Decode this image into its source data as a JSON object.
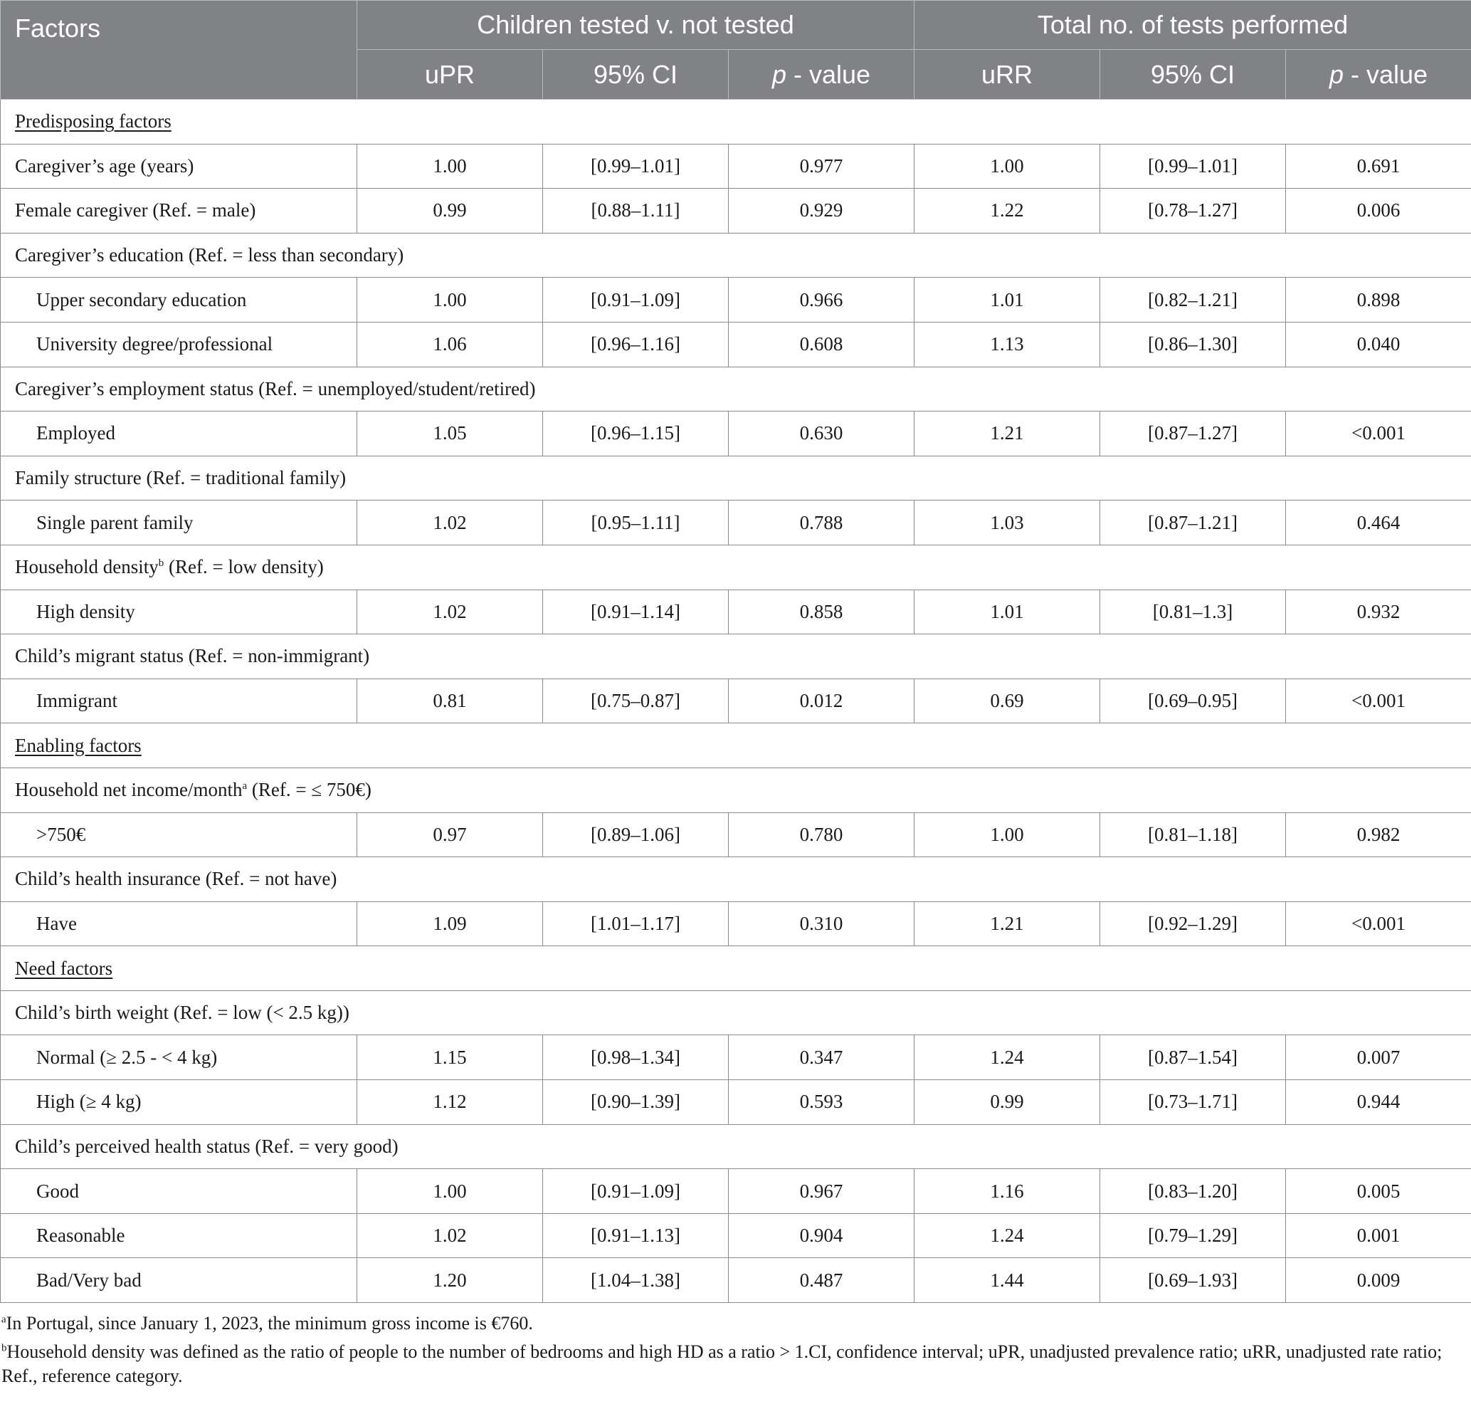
{
  "header": {
    "factors": "Factors",
    "group1": "Children tested v. not tested",
    "group2": "Total no. of tests performed",
    "upr": "uPR",
    "ci1": "95% CI",
    "pval1_p": "p",
    "pval1_rest": " - value",
    "urr": "uRR",
    "ci2": "95% CI",
    "pval2_p": "p",
    "pval2_rest": " - value"
  },
  "rows": [
    {
      "label": "Predisposing factors",
      "section": true
    },
    {
      "label": "Caregiver’s age (years)",
      "v": [
        "1.00",
        "[0.99–1.01]",
        "0.977",
        "1.00",
        "[0.99–1.01]",
        "0.691"
      ]
    },
    {
      "label": "Female caregiver (Ref. = male)",
      "v": [
        "0.99",
        "[0.88–1.11]",
        "0.929",
        "1.22",
        "[0.78–1.27]",
        "0.006"
      ]
    },
    {
      "label": "Caregiver’s education (Ref. = less than secondary)",
      "group": true
    },
    {
      "label": "Upper secondary education",
      "indent": true,
      "v": [
        "1.00",
        "[0.91–1.09]",
        "0.966",
        "1.01",
        "[0.82–1.21]",
        "0.898"
      ]
    },
    {
      "label": "University degree/professional",
      "indent": true,
      "v": [
        "1.06",
        "[0.96–1.16]",
        "0.608",
        "1.13",
        "[0.86–1.30]",
        "0.040"
      ]
    },
    {
      "label": "Caregiver’s employment status (Ref. = unemployed/student/retired)",
      "group": true
    },
    {
      "label": "Employed",
      "indent": true,
      "v": [
        "1.05",
        "[0.96–1.15]",
        "0.630",
        "1.21",
        "[0.87–1.27]",
        "<0.001"
      ]
    },
    {
      "label": "Family structure (Ref. = traditional family)",
      "group": true
    },
    {
      "label": "Single parent family",
      "indent": true,
      "v": [
        "1.02",
        "[0.95–1.11]",
        "0.788",
        "1.03",
        "[0.87–1.21]",
        "0.464"
      ]
    },
    {
      "label": "Household density",
      "sup": "b",
      "label_after": " (Ref. = low density)",
      "group": true
    },
    {
      "label": "High density",
      "indent": true,
      "v": [
        "1.02",
        "[0.91–1.14]",
        "0.858",
        "1.01",
        "[0.81–1.3]",
        "0.932"
      ]
    },
    {
      "label": "Child’s migrant status (Ref. = non-immigrant)",
      "group": true
    },
    {
      "label": "Immigrant",
      "indent": true,
      "v": [
        "0.81",
        "[0.75–0.87]",
        "0.012",
        "0.69",
        "[0.69–0.95]",
        "<0.001"
      ]
    },
    {
      "label": "Enabling factors",
      "section": true
    },
    {
      "label": "Household net income/month",
      "sup": "a",
      "label_after": " (Ref. = ≤ 750€)",
      "group": true
    },
    {
      "label": ">750€",
      "indent": true,
      "v": [
        "0.97",
        "[0.89–1.06]",
        "0.780",
        "1.00",
        "[0.81–1.18]",
        "0.982"
      ]
    },
    {
      "label": "Child’s health insurance (Ref. = not have)",
      "group": true
    },
    {
      "label": "Have",
      "indent": true,
      "v": [
        "1.09",
        "[1.01–1.17]",
        "0.310",
        "1.21",
        "[0.92–1.29]",
        "<0.001"
      ]
    },
    {
      "label": "Need factors",
      "section": true
    },
    {
      "label": "Child’s birth weight (Ref. = low (< 2.5 kg))",
      "group": true
    },
    {
      "label": "Normal (≥ 2.5 - < 4 kg)",
      "indent": true,
      "v": [
        "1.15",
        "[0.98–1.34]",
        "0.347",
        "1.24",
        "[0.87–1.54]",
        "0.007"
      ]
    },
    {
      "label": "High (≥ 4 kg)",
      "indent": true,
      "v": [
        "1.12",
        "[0.90–1.39]",
        "0.593",
        "0.99",
        "[0.73–1.71]",
        "0.944"
      ]
    },
    {
      "label": "Child’s perceived health status (Ref. = very good)",
      "group": true
    },
    {
      "label": "Good",
      "indent": true,
      "v": [
        "1.00",
        "[0.91–1.09]",
        "0.967",
        "1.16",
        "[0.83–1.20]",
        "0.005"
      ]
    },
    {
      "label": "Reasonable",
      "indent": true,
      "v": [
        "1.02",
        "[0.91–1.13]",
        "0.904",
        "1.24",
        "[0.79–1.29]",
        "0.001"
      ]
    },
    {
      "label": "Bad/Very bad",
      "indent": true,
      "v": [
        "1.20",
        "[1.04–1.38]",
        "0.487",
        "1.44",
        "[0.69–1.93]",
        "0.009"
      ]
    }
  ],
  "footnotes": [
    {
      "sup": "a",
      "text": "In Portugal, since January 1, 2023, the minimum gross income is €760."
    },
    {
      "sup": "b",
      "text": "Household density was defined as the ratio of people to the number of bedrooms and high HD as a ratio > 1.CI, confidence interval; uPR, unadjusted prevalence ratio; uRR, unadjusted rate ratio; Ref., reference category."
    }
  ]
}
